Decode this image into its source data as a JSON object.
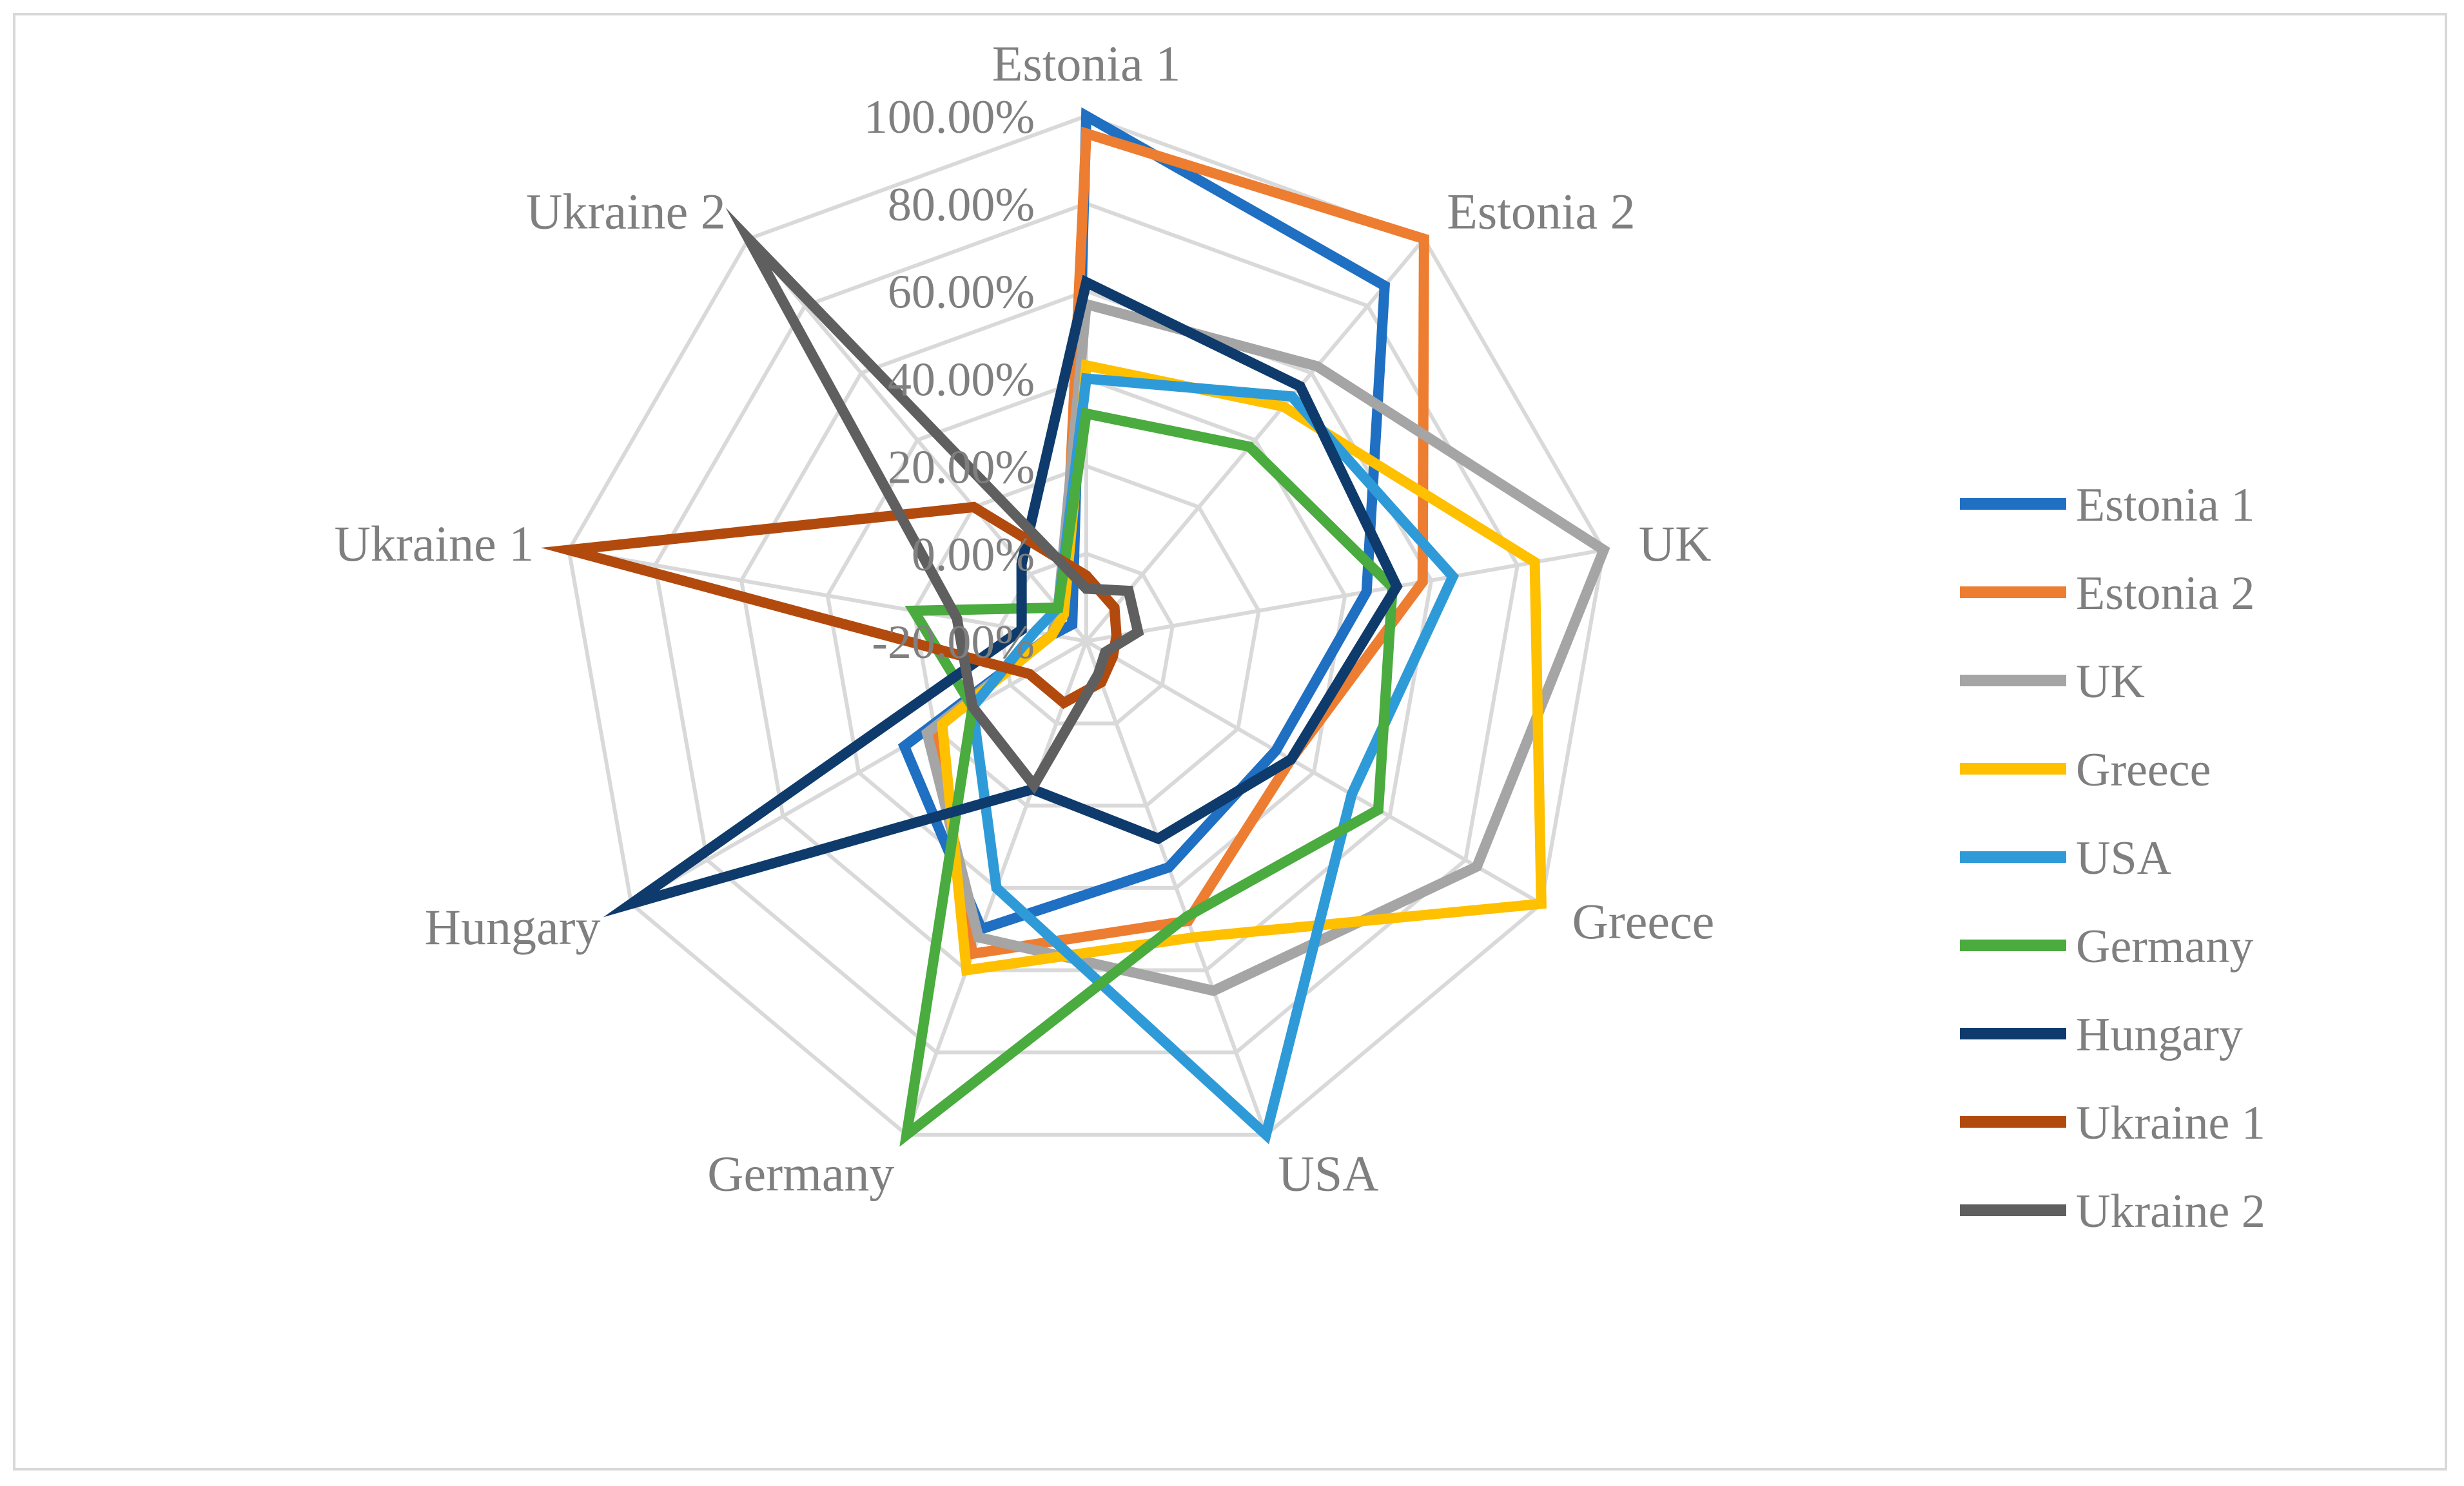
{
  "chart_data": {
    "type": "radar",
    "title": "",
    "axes": [
      "Estonia 1",
      "Estonia 2",
      "UK",
      "Greece",
      "USA",
      "Germany",
      "Hungary",
      "Ukraine 1",
      "Ukraine 2"
    ],
    "range": [
      -20,
      100
    ],
    "ticks": [
      "-20.00%",
      "0.00%",
      "20.00%",
      "40.00%",
      "60.00%",
      "80.00%",
      "100.00%"
    ],
    "tick_values": [
      -20,
      0,
      20,
      40,
      60,
      80,
      100
    ],
    "legend_position": "right",
    "series": [
      {
        "name": "Estonia 1",
        "color": "#1f6fc2",
        "values": [
          100,
          86,
          45,
          30,
          35,
          50,
          28,
          -12,
          -15
        ]
      },
      {
        "name": "Estonia 2",
        "color": "#ed7d31",
        "values": [
          96,
          100,
          58,
          34,
          48,
          56,
          20,
          -12,
          -12
        ]
      },
      {
        "name": "UK",
        "color": "#a5a5a5",
        "values": [
          57,
          62,
          100,
          83,
          65,
          52,
          22,
          -12,
          -10
        ]
      },
      {
        "name": "Greece",
        "color": "#ffc000",
        "values": [
          43,
          50,
          84,
          100,
          52,
          60,
          18,
          -12,
          -12
        ]
      },
      {
        "name": "USA",
        "color": "#2e9bd8",
        "values": [
          40,
          53,
          65,
          50,
          100,
          40,
          10,
          -8,
          -10
        ]
      },
      {
        "name": "Germany",
        "color": "#4aab3e",
        "values": [
          32,
          38,
          51,
          57,
          47,
          100,
          10,
          20,
          -10
        ]
      },
      {
        "name": "Hungary",
        "color": "#0e3b6c",
        "values": [
          62,
          56,
          52,
          34,
          28,
          16,
          100,
          -5,
          3
        ]
      },
      {
        "name": "Ukraine 1",
        "color": "#b24a0e",
        "values": [
          -5,
          -10,
          -13,
          -13,
          -10,
          -5,
          -5,
          100,
          20
        ]
      },
      {
        "name": "Ukraine 2",
        "color": "#5f5f5f",
        "values": [
          -8,
          -5,
          -8,
          -15,
          -12,
          15,
          10,
          10,
          100
        ]
      }
    ]
  }
}
